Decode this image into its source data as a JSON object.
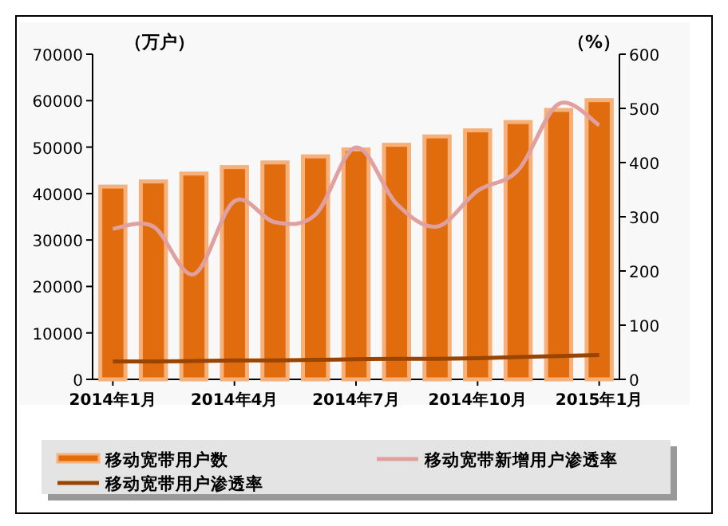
{
  "chart_data": {
    "type": "bar",
    "categories": [
      "2014年1月",
      null,
      null,
      "2014年4月",
      null,
      null,
      "2014年7月",
      null,
      null,
      "2014年10月",
      null,
      null,
      "2015年1月"
    ],
    "ylabel": "（万户）",
    "y2label": "（%）",
    "ylim": [
      0,
      70000
    ],
    "yticks": [
      0,
      10000,
      20000,
      30000,
      40000,
      50000,
      60000,
      70000
    ],
    "y2lim": [
      0,
      600
    ],
    "y2ticks": [
      0,
      100,
      200,
      300,
      400,
      500,
      600
    ],
    "legend": "bottom",
    "series": [
      {
        "name": "移动宽带用户数",
        "color": "#e06c0e",
        "values": [
          41500,
          42600,
          44300,
          45700,
          46700,
          48000,
          49500,
          50500,
          52300,
          53600,
          55400,
          58000,
          60100
        ]
      },
      {
        "name": "移动宽带新增用户渗透率",
        "type": "line",
        "axis": "y2",
        "color": "#e0a0a0",
        "values": [
          278,
          282,
          194,
          329,
          290,
          304,
          428,
          324,
          282,
          348,
          386,
          508,
          469
        ]
      },
      {
        "name": "移动宽带用户渗透率",
        "type": "line",
        "axis": "y2",
        "color": "#994400",
        "values": [
          33,
          33,
          34,
          35,
          35,
          36,
          37,
          38,
          38,
          39,
          41,
          43,
          45
        ]
      }
    ]
  }
}
